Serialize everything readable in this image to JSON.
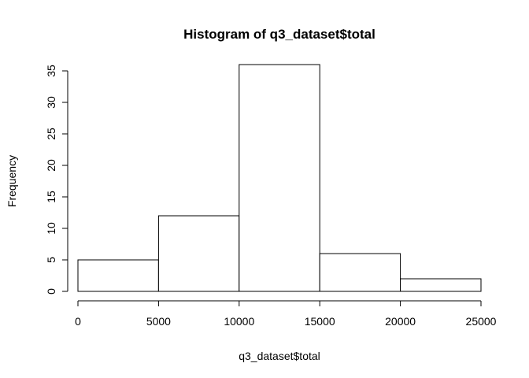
{
  "chart_data": {
    "type": "bar",
    "title": "Histogram of q3_dataset$total",
    "xlabel": "q3_dataset$total",
    "ylabel": "Frequency",
    "bins": [
      {
        "start": 0,
        "end": 5000,
        "count": 5
      },
      {
        "start": 5000,
        "end": 10000,
        "count": 12
      },
      {
        "start": 10000,
        "end": 15000,
        "count": 36
      },
      {
        "start": 15000,
        "end": 20000,
        "count": 6
      },
      {
        "start": 20000,
        "end": 25000,
        "count": 2
      }
    ],
    "xlim": [
      0,
      25000
    ],
    "ylim": [
      0,
      35
    ],
    "xticks": [
      0,
      5000,
      10000,
      15000,
      20000,
      25000
    ],
    "yticks": [
      0,
      5,
      10,
      15,
      20,
      25,
      30,
      35
    ],
    "grid": false,
    "bar_fill": "#ffffff",
    "bar_stroke": "#000000"
  }
}
